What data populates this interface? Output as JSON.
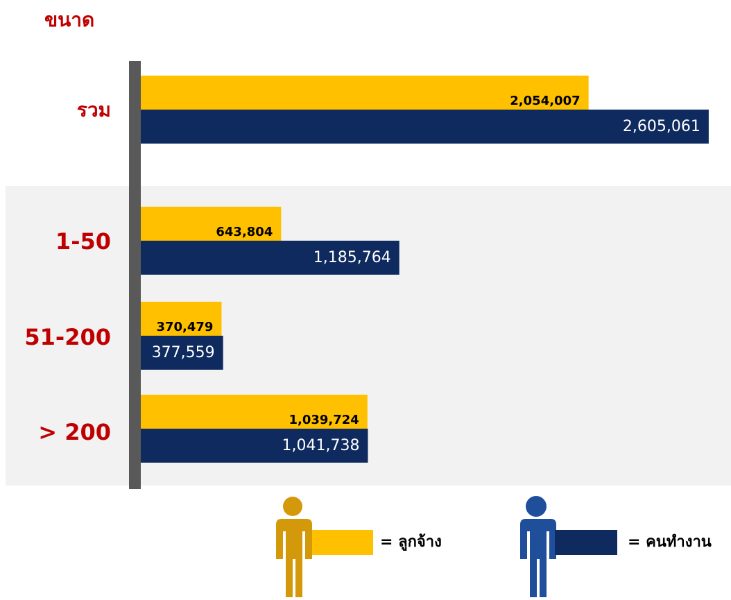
{
  "chart_data": {
    "type": "barh",
    "title": "ขนาด",
    "categories": [
      "รวม",
      "1-50",
      "51-200",
      "> 200"
    ],
    "series": [
      {
        "name": "= ลูกจ้าง",
        "color": "#FFC000",
        "values": [
          2054007,
          643804,
          370479,
          1039724
        ],
        "value_labels": [
          "2,054,007",
          "643,804",
          "370,479",
          "1,039,724"
        ]
      },
      {
        "name": "= คนทำงาน",
        "color": "#0E2A5E",
        "values": [
          2605061,
          1185764,
          377559,
          1041738
        ],
        "value_labels": [
          "2,605,061",
          "1,185,764",
          "377,559",
          "1,041,738"
        ]
      }
    ],
    "xlim": [
      0,
      2650000
    ]
  }
}
